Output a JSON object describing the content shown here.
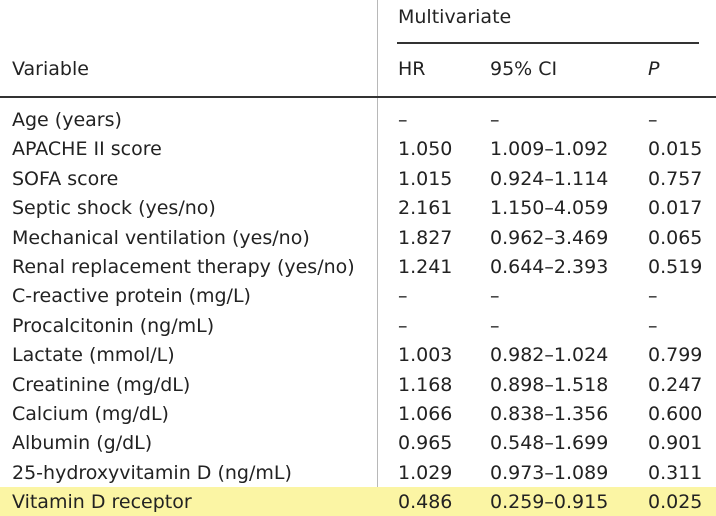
{
  "table": {
    "group_header": "Multivariate",
    "columns": {
      "variable": "Variable",
      "hr": "HR",
      "ci": "95% CI",
      "p": "P"
    },
    "rows": [
      {
        "variable": "Age (years)",
        "hr": "–",
        "ci": "–",
        "p": "–"
      },
      {
        "variable": "APACHE II score",
        "hr": "1.050",
        "ci": "1.009–1.092",
        "p": "0.015"
      },
      {
        "variable": "SOFA score",
        "hr": "1.015",
        "ci": "0.924–1.114",
        "p": "0.757"
      },
      {
        "variable": "Septic shock (yes/no)",
        "hr": "2.161",
        "ci": "1.150–4.059",
        "p": "0.017"
      },
      {
        "variable": "Mechanical ventilation (yes/no)",
        "hr": "1.827",
        "ci": "0.962–3.469",
        "p": "0.065"
      },
      {
        "variable": "Renal replacement therapy (yes/no)",
        "hr": "1.241",
        "ci": "0.644–2.393",
        "p": "0.519"
      },
      {
        "variable": "C-reactive protein (mg/L)",
        "hr": "–",
        "ci": "–",
        "p": "–"
      },
      {
        "variable": "Procalcitonin (ng/mL)",
        "hr": "–",
        "ci": "–",
        "p": "–"
      },
      {
        "variable": "Lactate (mmol/L)",
        "hr": "1.003",
        "ci": "0.982–1.024",
        "p": "0.799"
      },
      {
        "variable": "Creatinine (mg/dL)",
        "hr": "1.168",
        "ci": "0.898–1.518",
        "p": "0.247"
      },
      {
        "variable": "Calcium (mg/dL)",
        "hr": "1.066",
        "ci": "0.838–1.356",
        "p": "0.600"
      },
      {
        "variable": "Albumin (g/dL)",
        "hr": "0.965",
        "ci": "0.548–1.699",
        "p": "0.901"
      },
      {
        "variable": "25-hydroxyvitamin D (ng/mL)",
        "hr": "1.029",
        "ci": "0.973–1.089",
        "p": "0.311"
      },
      {
        "variable": "Vitamin D receptor",
        "hr": "0.486",
        "ci": "0.259–0.915",
        "p": "0.025"
      }
    ],
    "highlight_color": "#fbf5a4"
  }
}
